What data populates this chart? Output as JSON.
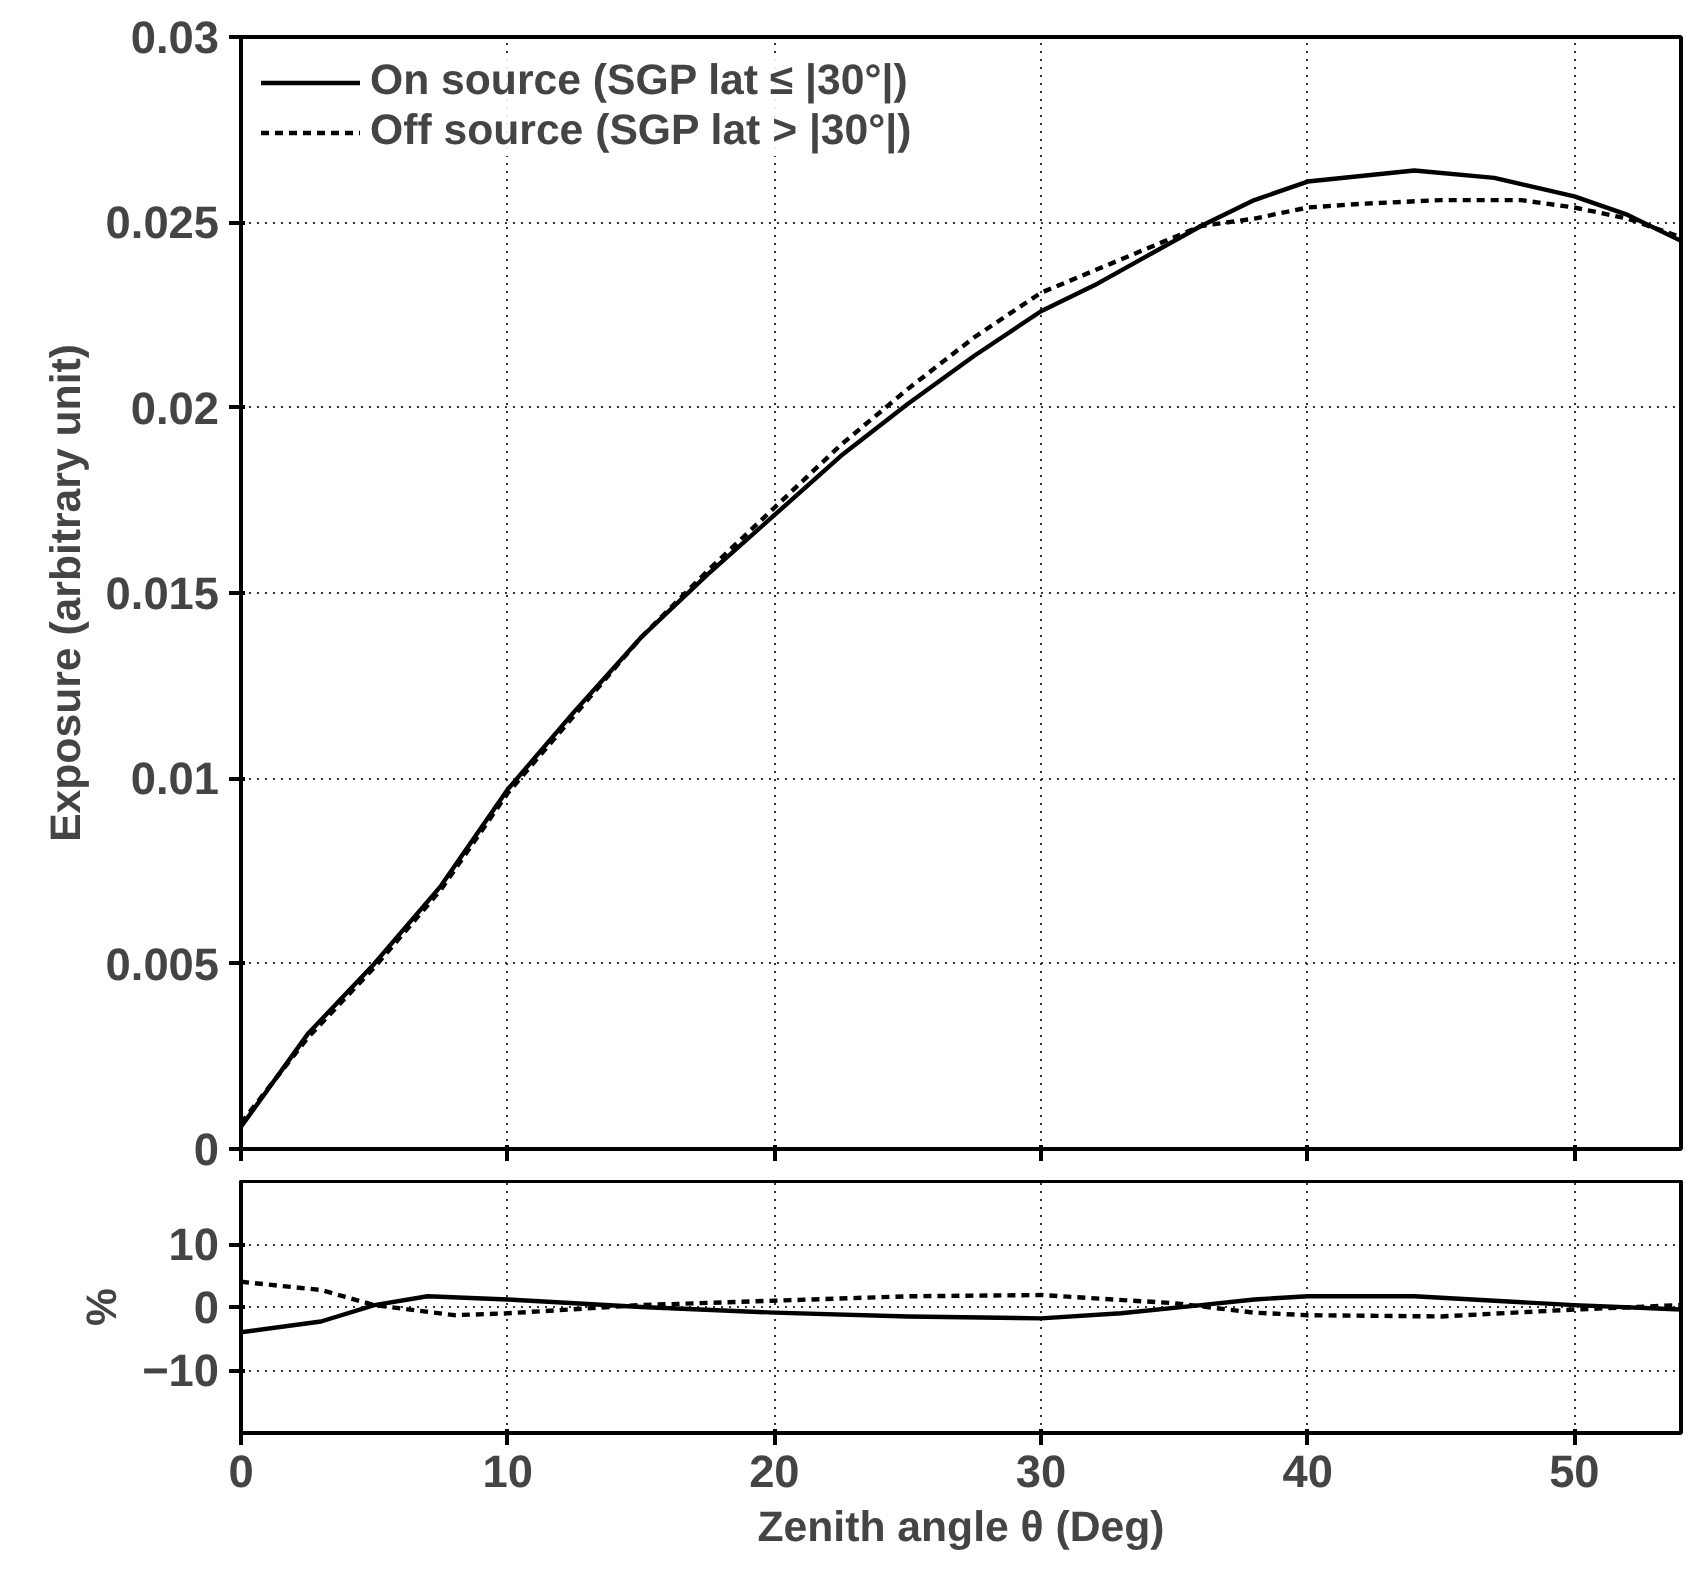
{
  "chart_data": [
    {
      "type": "line",
      "ylabel": "Exposure (arbitrary unit)",
      "legend": "top left",
      "grid": true,
      "tick_labels": "y",
      "xlim": [
        0,
        54
      ],
      "xticks": [
        0,
        10,
        20,
        30,
        40,
        50
      ],
      "ylim": [
        0,
        0.03
      ],
      "yticks": [
        0,
        0.005,
        0.01,
        0.015,
        0.02,
        0.025,
        0.03
      ],
      "series": [
        {
          "name": "On source (SGP lat ≤ |30°|)",
          "color": "#000000",
          "line_style": "solid",
          "x": [
            0,
            2.5,
            5,
            7.5,
            10,
            12.5,
            15,
            17.5,
            20,
            22.5,
            25,
            27.5,
            30,
            32,
            34,
            36,
            38,
            40,
            44,
            47,
            50,
            52,
            54
          ],
          "values": [
            0.0006,
            0.0031,
            0.005,
            0.0071,
            0.0097,
            0.0118,
            0.0138,
            0.0155,
            0.0171,
            0.0187,
            0.0201,
            0.0214,
            0.0226,
            0.0233,
            0.0241,
            0.0249,
            0.0256,
            0.0261,
            0.0264,
            0.0262,
            0.0257,
            0.0252,
            0.0245
          ]
        },
        {
          "name": "Off source (SGP lat > |30°|)",
          "color": "#000000",
          "line_style": "dashed",
          "x": [
            0,
            2.5,
            5,
            7.5,
            10,
            12.5,
            15,
            17.5,
            20,
            22.5,
            25,
            27.5,
            30,
            32,
            34,
            36,
            38,
            40,
            42,
            45,
            48,
            50,
            52,
            54
          ],
          "values": [
            0.0007,
            0.003,
            0.0049,
            0.007,
            0.0096,
            0.0117,
            0.0138,
            0.0156,
            0.0173,
            0.019,
            0.0205,
            0.0219,
            0.0231,
            0.0237,
            0.0243,
            0.0249,
            0.0251,
            0.0254,
            0.0255,
            0.0256,
            0.0256,
            0.0254,
            0.0251,
            0.0246
          ]
        }
      ]
    },
    {
      "type": "line",
      "xlabel": "Zenith angle θ (Deg)",
      "ylabel": "%",
      "grid": true,
      "xlim": [
        0,
        54
      ],
      "xticks": [
        0,
        10,
        20,
        30,
        40,
        50
      ],
      "ylim": [
        -20,
        20
      ],
      "yticks": [
        -10,
        0,
        10
      ],
      "series": [
        {
          "color": "#000000",
          "line_style": "solid",
          "x": [
            0,
            3,
            5,
            7,
            10,
            15,
            20,
            25,
            30,
            33,
            36,
            38,
            40,
            44,
            50,
            54
          ],
          "values": [
            -4,
            -2.3,
            0.3,
            1.7,
            1.2,
            0,
            -0.9,
            -1.5,
            -1.8,
            -1,
            0.3,
            1.2,
            1.7,
            1.7,
            0.3,
            -0.4
          ]
        },
        {
          "color": "#000000",
          "line_style": "dashed",
          "x": [
            0,
            3,
            5,
            8,
            10,
            15,
            20,
            25,
            30,
            35,
            38,
            40,
            45,
            50,
            54
          ],
          "values": [
            4,
            2.7,
            0.3,
            -1.3,
            -1,
            0.3,
            1,
            1.7,
            1.9,
            0.6,
            -0.9,
            -1.3,
            -1.5,
            -0.4,
            0.3
          ]
        }
      ]
    }
  ]
}
